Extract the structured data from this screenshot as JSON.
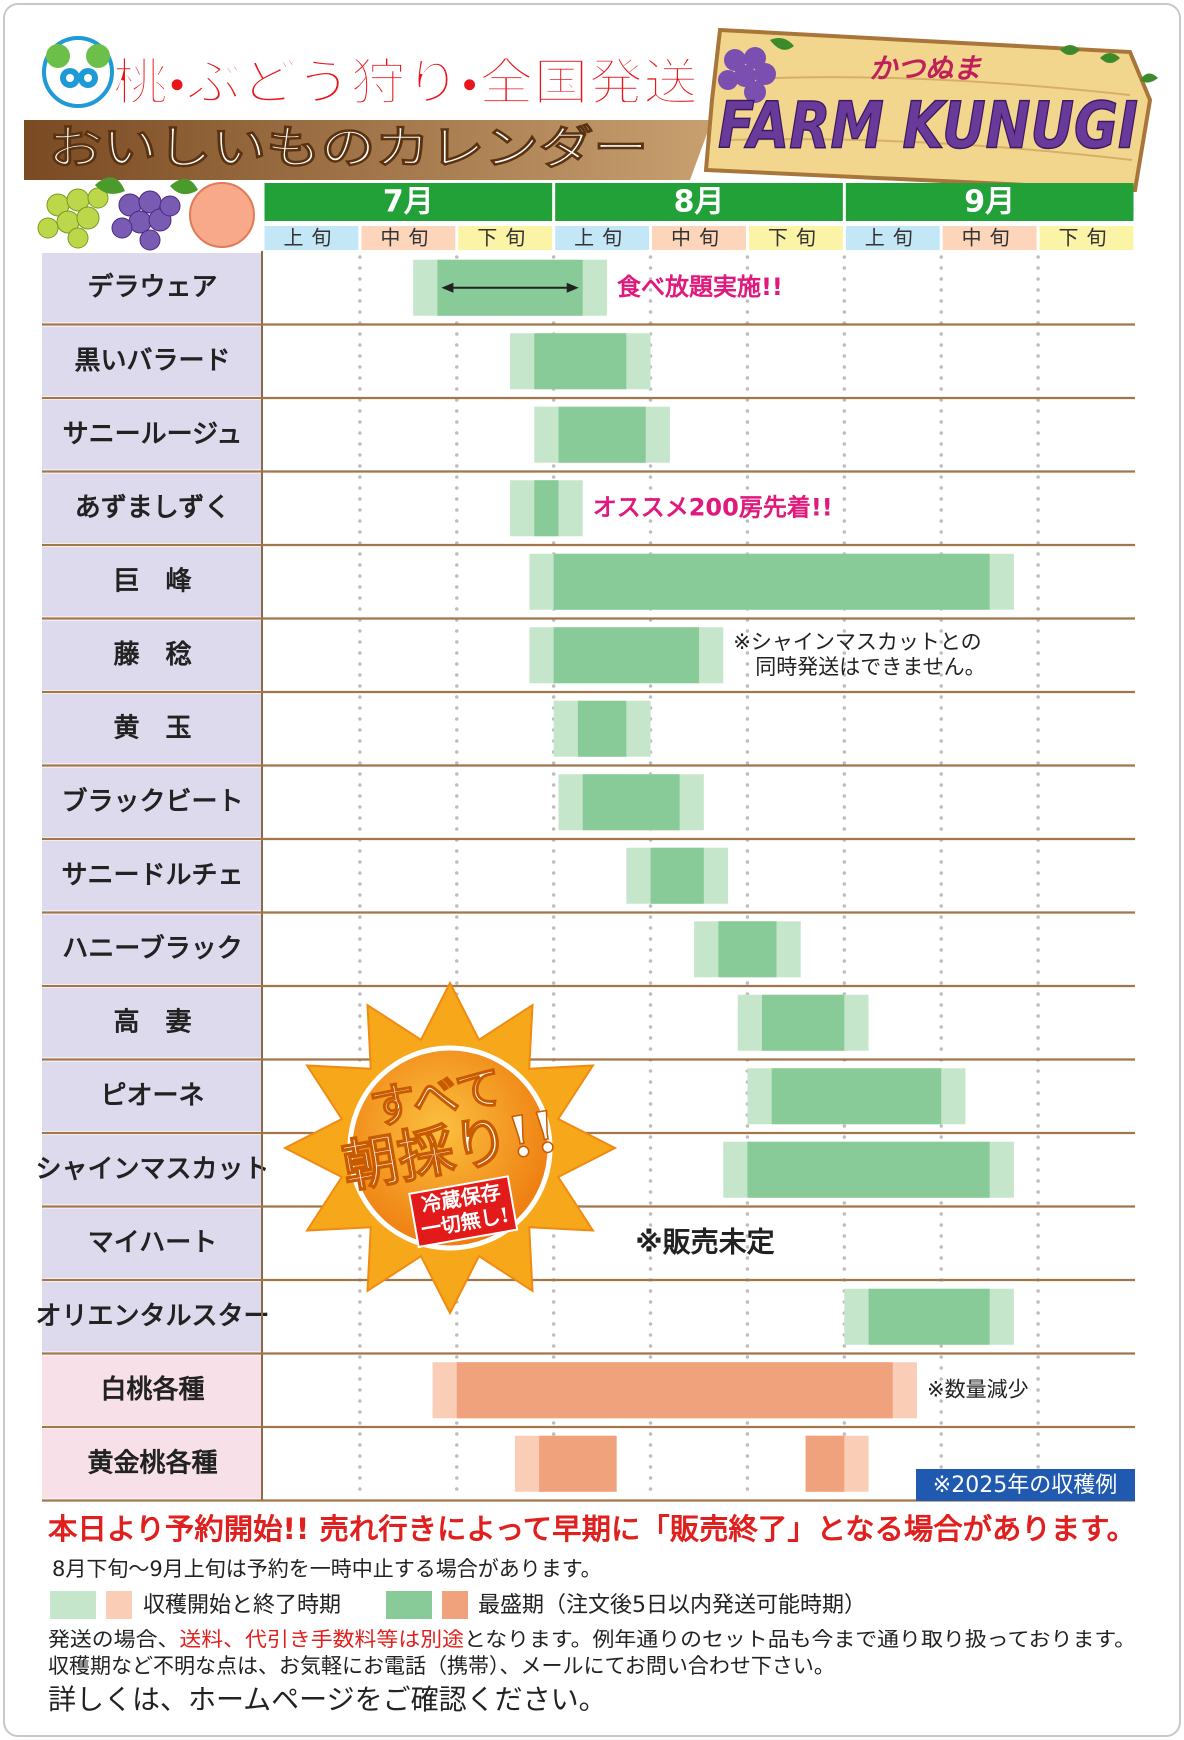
{
  "header": {
    "title": "桃・ぶどう狩り・全国発送",
    "subtitle": "おいしいものカレンダー",
    "brand_kana": "かつぬま",
    "brand": "FARM KUNUGI"
  },
  "calendar": {
    "months": [
      "7月",
      "8月",
      "9月"
    ],
    "periods": [
      "上旬",
      "中旬",
      "下旬"
    ],
    "month_color": "#21a137",
    "period_colors": [
      "#c4e7f7",
      "#fcd5bb",
      "#fbf3a6"
    ],
    "kinds": {
      "grape": {
        "name_bg": "#dedaee",
        "light": "#c6e6cb",
        "peak": "#88cb98"
      },
      "peach": {
        "name_bg": "#f7e0e8",
        "light": "#f9cdb6",
        "peak": "#f0a27c"
      }
    },
    "rows": [
      {
        "name": "デラウェア",
        "kind": "grape",
        "light": [
          [
            1.55,
            3.55
          ]
        ],
        "peak": [
          [
            1.8,
            3.3
          ]
        ],
        "arrow": true,
        "note": [
          "食べ放題実施!!"
        ],
        "note_color": "#e0197d"
      },
      {
        "name": "黒いバラード",
        "kind": "grape",
        "light": [
          [
            2.55,
            4.0
          ]
        ],
        "peak": [
          [
            2.8,
            3.75
          ]
        ]
      },
      {
        "name": "サニールージュ",
        "kind": "grape",
        "light": [
          [
            2.8,
            4.2
          ]
        ],
        "peak": [
          [
            3.05,
            3.95
          ]
        ]
      },
      {
        "name": "あずましずく",
        "kind": "grape",
        "light": [
          [
            2.55,
            3.3
          ]
        ],
        "peak": [
          [
            2.8,
            3.05
          ]
        ],
        "note": [
          "オススメ200房先着!!"
        ],
        "note_color": "#e0197d"
      },
      {
        "name": "巨　峰",
        "kind": "grape",
        "light": [
          [
            2.75,
            7.75
          ]
        ],
        "peak": [
          [
            3.0,
            7.5
          ]
        ]
      },
      {
        "name": "藤　稔",
        "kind": "grape",
        "light": [
          [
            2.75,
            4.75
          ]
        ],
        "peak": [
          [
            3.0,
            4.5
          ]
        ],
        "note": [
          "※シャインマスカットとの",
          "同時発送はできません。"
        ]
      },
      {
        "name": "黄　玉",
        "kind": "grape",
        "light": [
          [
            3.0,
            4.0
          ]
        ],
        "peak": [
          [
            3.25,
            3.75
          ]
        ]
      },
      {
        "name": "ブラックビート",
        "kind": "grape",
        "light": [
          [
            3.05,
            4.55
          ]
        ],
        "peak": [
          [
            3.3,
            4.3
          ]
        ]
      },
      {
        "name": "サニードルチェ",
        "kind": "grape",
        "light": [
          [
            3.75,
            4.8
          ]
        ],
        "peak": [
          [
            4.0,
            4.55
          ]
        ]
      },
      {
        "name": "ハニーブラック",
        "kind": "grape",
        "light": [
          [
            4.45,
            5.55
          ]
        ],
        "peak": [
          [
            4.7,
            5.3
          ]
        ]
      },
      {
        "name": "高　妻",
        "kind": "grape",
        "light": [
          [
            4.9,
            6.25
          ]
        ],
        "peak": [
          [
            5.15,
            6.0
          ]
        ]
      },
      {
        "name": "ピオーネ",
        "kind": "grape",
        "light": [
          [
            5.0,
            7.25
          ]
        ],
        "peak": [
          [
            5.25,
            7.0
          ]
        ]
      },
      {
        "name": "シャインマスカット",
        "kind": "grape",
        "light": [
          [
            4.75,
            7.75
          ]
        ],
        "peak": [
          [
            5.0,
            7.5
          ]
        ]
      },
      {
        "name": "マイハート",
        "kind": "grape",
        "light": [],
        "peak": [],
        "note": [
          "※販売未定"
        ]
      },
      {
        "name": "オリエンタルスター",
        "kind": "grape",
        "light": [
          [
            6.0,
            7.75
          ]
        ],
        "peak": [
          [
            6.25,
            7.5
          ]
        ]
      },
      {
        "name": "白桃各種",
        "kind": "peach",
        "light": [
          [
            1.75,
            6.75
          ]
        ],
        "peak": [
          [
            2.0,
            6.5
          ]
        ],
        "note": [
          "※数量減少"
        ]
      },
      {
        "name": "黄金桃各種",
        "kind": "peach",
        "light": [
          [
            2.6,
            3.65
          ],
          [
            5.6,
            6.25
          ]
        ],
        "peak": [
          [
            2.85,
            3.65
          ],
          [
            5.6,
            6.0
          ]
        ]
      }
    ],
    "badge": "※2025年の収穫例"
  },
  "sun": {
    "line1": "すべて",
    "line2": "朝採り!!",
    "stamp": [
      "冷蔵保存",
      "一切無し!"
    ]
  },
  "footer": {
    "notice": "本日より予約開始!! 売れ行きによって早期に「販売終了」となる場合があります。",
    "pause": "8月下旬〜9月上旬は予約を一時中止する場合があります。",
    "legend_light": "収穫開始と終了時期",
    "legend_peak": "最盛期（注文後5日以内発送可能時期）",
    "shipping": [
      "発送の場合、",
      "送料、代引き手数料等は別途",
      "となります。例年通りのセット品も今まで通り取り扱っております。"
    ],
    "contact": "収穫期など不明な点は、お気軽にお電話（携帯）、メールにてお問い合わせ下さい。",
    "more": "詳しくは、ホームページをご確認ください。"
  }
}
